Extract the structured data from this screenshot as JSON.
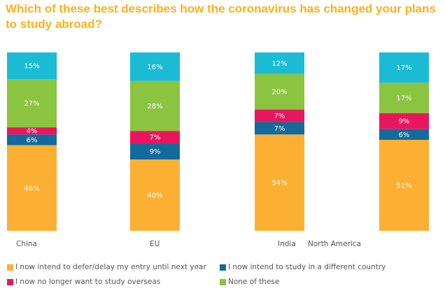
{
  "chart_data": {
    "type": "bar",
    "stacked": true,
    "percent": true,
    "title": "Which of these best describes how the coronavirus has changed your plans to study abroad?",
    "xlabel": "",
    "ylabel": "",
    "ylim": [
      0,
      100
    ],
    "grid": false,
    "legend_position": "bottom",
    "categories": [
      "China",
      "EU",
      "India",
      "North America"
    ],
    "series": [
      {
        "name": "I now intend to defer/delay my entry until next year",
        "color": "#FBB034",
        "values": [
          48,
          40,
          54,
          51
        ]
      },
      {
        "name": "I now intend to study in a different country",
        "color": "#136A9C",
        "values": [
          6,
          9,
          7,
          6
        ]
      },
      {
        "name": "I now no longer want to study overseas",
        "color": "#E8175D",
        "values": [
          4,
          7,
          7,
          9
        ]
      },
      {
        "name": "None of these",
        "color": "#8BC440",
        "values": [
          27,
          28,
          20,
          17
        ]
      },
      {
        "name": "",
        "color": "#1BBBD6",
        "values": [
          15,
          16,
          12,
          17
        ]
      }
    ],
    "data_labels_suffix": "%"
  },
  "legend_order": [
    0,
    1,
    2,
    3
  ],
  "title_color": "#F9B21E"
}
